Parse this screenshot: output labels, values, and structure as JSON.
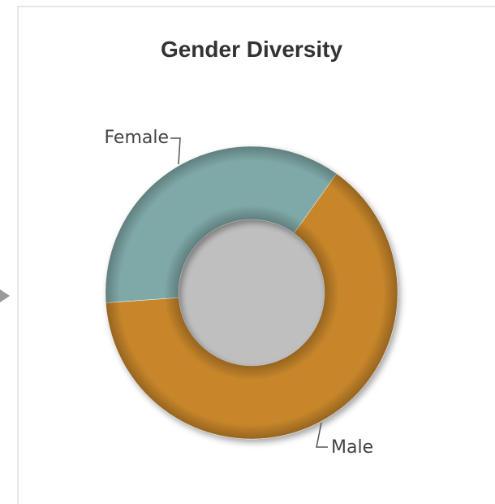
{
  "chart_data": {
    "type": "donut",
    "title": "Gender Diversity",
    "categories": [
      "Female",
      "Male"
    ],
    "values": [
      36,
      64
    ],
    "colors": [
      "#7fa9a8",
      "#c8862a"
    ]
  }
}
